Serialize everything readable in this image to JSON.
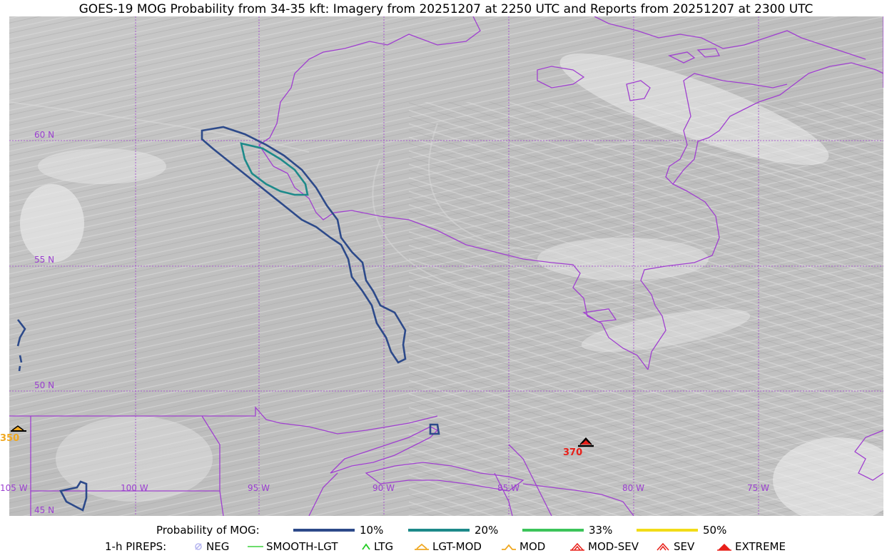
{
  "title": "GOES-19 MOG Probability from 34-35 kft: Imagery from 20251207 at 2250 UTC and Reports from 20251207 at 2300 UTC",
  "colors": {
    "border": "#a040d0",
    "grid": "#a040d0",
    "prob_10": "#2d4a8a",
    "prob_20": "#1d8a8a",
    "prob_33": "#3cc45a",
    "prob_50": "#f2dc18",
    "report_red": "#e8201a",
    "report_orange": "#f0a820"
  },
  "map": {
    "lat_labels": [
      "60 N",
      "55 N",
      "50 N",
      "45 N"
    ],
    "lon_labels": [
      "105 W",
      "100 W",
      "95 W",
      "90 W",
      "85 W",
      "80 W",
      "75 W"
    ],
    "reports": [
      {
        "label": "370",
        "icon": "mod-sev-turbulence-icon",
        "color": "#e8201a"
      },
      {
        "label": "350",
        "icon": "mod-turbulence-icon",
        "color": "#f0a820"
      }
    ]
  },
  "legend": {
    "prob_heading": "Probability of MOG:",
    "prob_items": [
      {
        "label": "10%",
        "color": "#2d4a8a"
      },
      {
        "label": "20%",
        "color": "#1d8a8a"
      },
      {
        "label": "33%",
        "color": "#3cc45a"
      },
      {
        "label": "50%",
        "color": "#f2dc18"
      }
    ],
    "pirep_heading": "1-h PIREPS:",
    "pirep_items": [
      {
        "label": "NEG",
        "icon": "neg-icon"
      },
      {
        "label": "SMOOTH-LGT",
        "icon": "smooth-lgt-line-icon"
      },
      {
        "label": "LTG",
        "icon": "ltg-icon"
      },
      {
        "label": "LGT-MOD",
        "icon": "lgt-mod-icon"
      },
      {
        "label": "MOD",
        "icon": "mod-icon"
      },
      {
        "label": "MOD-SEV",
        "icon": "mod-sev-icon"
      },
      {
        "label": "SEV",
        "icon": "sev-icon"
      },
      {
        "label": "EXTREME",
        "icon": "extreme-icon"
      }
    ]
  }
}
